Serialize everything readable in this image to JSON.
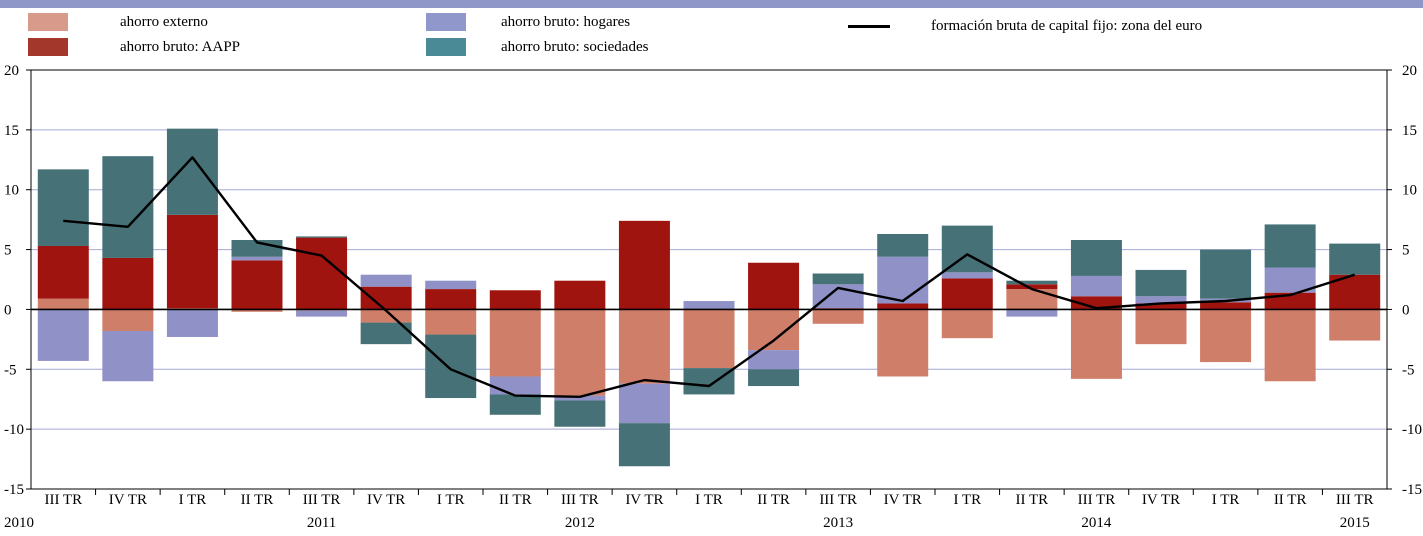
{
  "colors": {
    "ahorro_externo": "#cf7e69",
    "ahorro_aapp": "#a0140f",
    "ahorro_hogares": "#8f91c7",
    "ahorro_sociedades": "#457177",
    "line": "#000000",
    "grid": "#a4a8d6",
    "topbar": "#8f97c9"
  },
  "legend": [
    {
      "key": "ahorro_externo",
      "label": "ahorro externo",
      "kind": "swatch",
      "color": "#d89a8a"
    },
    {
      "key": "ahorro_aapp",
      "label": "ahorro bruto: AAPP",
      "kind": "swatch",
      "color": "#a3372c"
    },
    {
      "key": "ahorro_hogares",
      "label": "ahorro bruto: hogares",
      "kind": "swatch",
      "color": "#9097cb"
    },
    {
      "key": "ahorro_sociedades",
      "label": "ahorro bruto: sociedades",
      "kind": "swatch",
      "color": "#4a8a97"
    },
    {
      "key": "fbcf",
      "label": "formación bruta de capital fijo: zona del euro",
      "kind": "line",
      "color": "#000000"
    }
  ],
  "chart_data": {
    "type": "bar",
    "stacked": true,
    "categories": [
      "III TR",
      "IV TR",
      "I TR",
      "II TR",
      "III TR",
      "IV TR",
      "I TR",
      "II TR",
      "III TR",
      "IV TR",
      "I TR",
      "II TR",
      "III TR",
      "IV TR",
      "I TR",
      "II TR",
      "III TR",
      "IV TR",
      "I TR",
      "II TR",
      "III TR"
    ],
    "years": [
      {
        "label": "2010",
        "index": 0
      },
      {
        "label": "2011",
        "index": 4
      },
      {
        "label": "2012",
        "index": 8
      },
      {
        "label": "2013",
        "index": 12
      },
      {
        "label": "2014",
        "index": 16
      },
      {
        "label": "2015",
        "index": 20
      }
    ],
    "ylim": [
      -15,
      20
    ],
    "yticks": [
      -15,
      -10,
      -5,
      0,
      5,
      10,
      15,
      20
    ],
    "grid": true,
    "series": [
      {
        "key": "ahorro_externo",
        "name": "ahorro externo",
        "values": [
          0.9,
          -1.8,
          0.1,
          -0.2,
          -0.1,
          -1.1,
          -2.1,
          -5.6,
          -7.2,
          -6.2,
          -4.9,
          -3.4,
          -1.2,
          -5.6,
          -2.4,
          1.7,
          -5.8,
          -2.9,
          -4.4,
          -6.0,
          -2.6
        ]
      },
      {
        "key": "ahorro_aapp",
        "name": "ahorro bruto: AAPP",
        "values": [
          4.4,
          4.3,
          7.8,
          4.1,
          6.0,
          1.9,
          1.7,
          1.6,
          2.4,
          7.4,
          0.0,
          3.9,
          0.1,
          0.5,
          2.6,
          0.4,
          1.1,
          0.5,
          0.6,
          1.4,
          2.9
        ]
      },
      {
        "key": "ahorro_hogares",
        "name": "ahorro bruto: hogares",
        "values": [
          -4.3,
          -4.2,
          -2.3,
          0.3,
          -0.5,
          1.0,
          0.7,
          -1.5,
          -0.4,
          -3.3,
          0.7,
          -1.6,
          2.0,
          3.9,
          0.5,
          -0.6,
          1.7,
          0.6,
          0.3,
          2.1,
          0.0
        ]
      },
      {
        "key": "ahorro_sociedades",
        "name": "ahorro bruto: sociedades",
        "values": [
          6.4,
          8.5,
          7.2,
          1.4,
          0.1,
          -1.8,
          -5.3,
          -1.7,
          -2.2,
          -3.6,
          -2.2,
          -1.4,
          0.9,
          1.9,
          3.9,
          0.3,
          3.0,
          2.2,
          4.1,
          3.6,
          2.6
        ]
      }
    ],
    "line": {
      "name": "formación bruta de capital fijo: zona del euro",
      "values": [
        7.4,
        6.9,
        12.7,
        5.6,
        4.5,
        -0.1,
        -5.0,
        -7.2,
        -7.3,
        -5.9,
        -6.4,
        -2.6,
        1.8,
        0.7,
        4.6,
        1.7,
        0.1,
        0.5,
        0.7,
        1.2,
        2.9
      ]
    }
  }
}
